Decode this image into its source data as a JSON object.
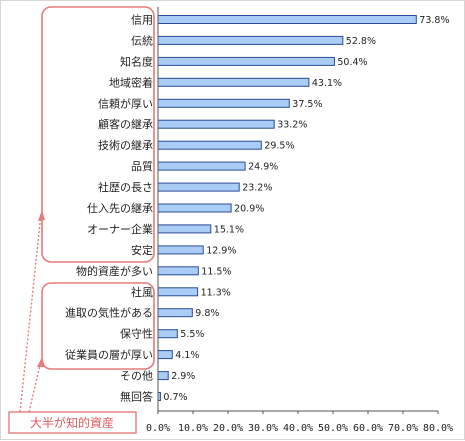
{
  "chart_data": {
    "type": "bar",
    "orientation": "horizontal",
    "categories": [
      "信用",
      "伝統",
      "知名度",
      "地域密着",
      "信頼が厚い",
      "顧客の継承",
      "技術の継承",
      "品質",
      "社歴の長さ",
      "仕入先の継承",
      "オーナー企業",
      "安定",
      "物的資産が多い",
      "社風",
      "進取の気性がある",
      "保守性",
      "従業員の層が厚い",
      "その他",
      "無回答"
    ],
    "values": [
      73.8,
      52.8,
      50.4,
      43.1,
      37.5,
      33.2,
      29.5,
      24.9,
      23.2,
      20.9,
      15.1,
      12.9,
      11.5,
      11.3,
      9.8,
      5.5,
      4.1,
      2.9,
      0.7
    ],
    "value_labels": [
      "73.8%",
      "52.8%",
      "50.4%",
      "43.1%",
      "37.5%",
      "33.2%",
      "29.5%",
      "24.9%",
      "23.2%",
      "20.9%",
      "15.1%",
      "12.9%",
      "11.5%",
      "11.3%",
      "9.8%",
      "5.5%",
      "4.1%",
      "2.9%",
      "0.7%"
    ],
    "xlim": [
      0,
      80
    ],
    "xticks": [
      0,
      10,
      20,
      30,
      40,
      50,
      60,
      70,
      80
    ],
    "xtick_labels": [
      "0.0%",
      "10.0%",
      "20.0%",
      "30.0%",
      "40.0%",
      "50.0%",
      "60.0%",
      "70.0%",
      "80.0%"
    ],
    "grid": false,
    "bar_color": "#a9cdf5",
    "bar_edge_color": "#2b4b9a",
    "annotation": {
      "text": "大半が知的資産",
      "color": "#e05a5a",
      "groups": [
        [
          "信用",
          "伝統",
          "知名度",
          "地域密着",
          "信頼が厚い",
          "顧客の継承",
          "技術の継承",
          "品質",
          "社歴の長さ",
          "仕入先の継承",
          "オーナー企業",
          "安定"
        ],
        [
          "社風",
          "進取の気性がある",
          "保守性",
          "従業員の層が厚い"
        ]
      ]
    }
  }
}
